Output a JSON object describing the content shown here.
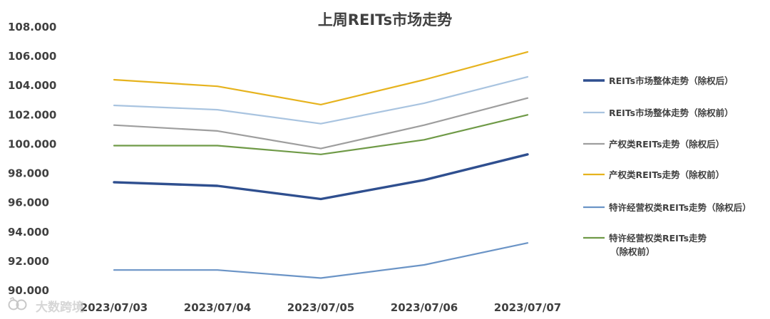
{
  "chart_data": {
    "type": "line",
    "title": "上周REITs市场走势",
    "xlabel": "",
    "ylabel": "",
    "categories": [
      "2023/07/03",
      "2023/07/04",
      "2023/07/05",
      "2023/07/06",
      "2023/07/07"
    ],
    "ylim": [
      90,
      108
    ],
    "yticks": [
      "90.000",
      "92.000",
      "94.000",
      "96.000",
      "98.000",
      "100.000",
      "102.000",
      "104.000",
      "106.000",
      "108.000"
    ],
    "grid": false,
    "legend_position": "right",
    "series": [
      {
        "name": "REITs市场整体走势（除权后）",
        "color": "#2f4f8f",
        "emphasis": true,
        "values": [
          97.4,
          97.15,
          96.25,
          97.55,
          99.3
        ]
      },
      {
        "name": "REITs市场整体走势（除权前）",
        "color": "#a9c4e0",
        "values": [
          102.65,
          102.35,
          101.4,
          102.8,
          104.6
        ]
      },
      {
        "name": "产权类REITs走势（除权后）",
        "color": "#9e9e9e",
        "values": [
          101.3,
          100.9,
          99.7,
          101.3,
          103.15
        ]
      },
      {
        "name": "产权类REITs走势（除权前）",
        "color": "#e6b31e",
        "values": [
          104.4,
          103.95,
          102.7,
          104.4,
          106.3
        ]
      },
      {
        "name": "特许经营权类REITs走势（除权后）",
        "color": "#6b94c6",
        "values": [
          91.4,
          91.4,
          90.85,
          91.75,
          93.25
        ]
      },
      {
        "name": "特许经营权类REITs走势（除权前）",
        "color": "#6f9a47",
        "values": [
          99.9,
          99.9,
          99.3,
          100.3,
          102.0
        ]
      }
    ]
  },
  "watermark": {
    "text": "大数跨境",
    "icon": "brand-logo-icon"
  }
}
